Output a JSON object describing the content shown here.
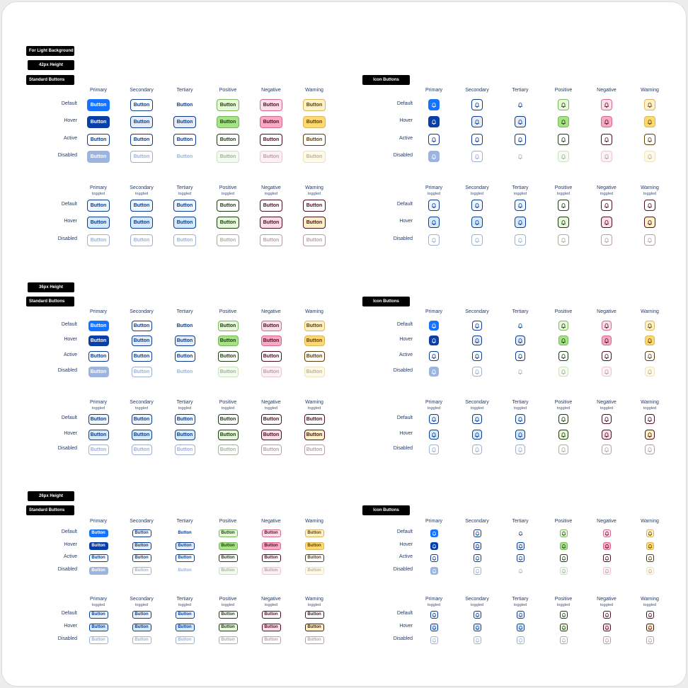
{
  "labels": {
    "for_light_background": "For Light Background",
    "heights": [
      "42px Height",
      "36px Height",
      "26px Height"
    ],
    "standard_buttons": "Standard Buttons",
    "icon_buttons": "Icon Buttons",
    "button_text": "Button",
    "toggled": "toggled"
  },
  "columns": [
    "Primary",
    "Secondary",
    "Tertiary",
    "Positive",
    "Negative",
    "Warning"
  ],
  "rows_main": [
    "Default",
    "Hover",
    "Active",
    "Disabled"
  ],
  "rows_toggled": [
    "Default",
    "Hover",
    "Disabled"
  ],
  "icon_name": "bell-icon",
  "colors": {
    "text": "#243a63",
    "primary": "#1673ff",
    "primary_hover": "#0a3fa8",
    "primary_text": "#0b3b8f",
    "primary_disabled": "#9cb4e0",
    "tertiary_hover_bg": "#e6ecf5",
    "toggled_bg": "#eef6ff",
    "toggled_hover_bg": "#d4eaff",
    "positive_bg": "#e6f8d8",
    "positive_border": "#77b85a",
    "positive_hover": "#a6e386",
    "positive_text": "#1e3a10",
    "negative_bg": "#fcdde8",
    "negative_border": "#d46b8c",
    "negative_hover": "#f9a9c4",
    "negative_text": "#4a1020",
    "warning_bg": "#fff1c5",
    "warning_border": "#d9b55e",
    "warning_hover": "#ffd86e",
    "warning_text": "#5a3d08"
  }
}
